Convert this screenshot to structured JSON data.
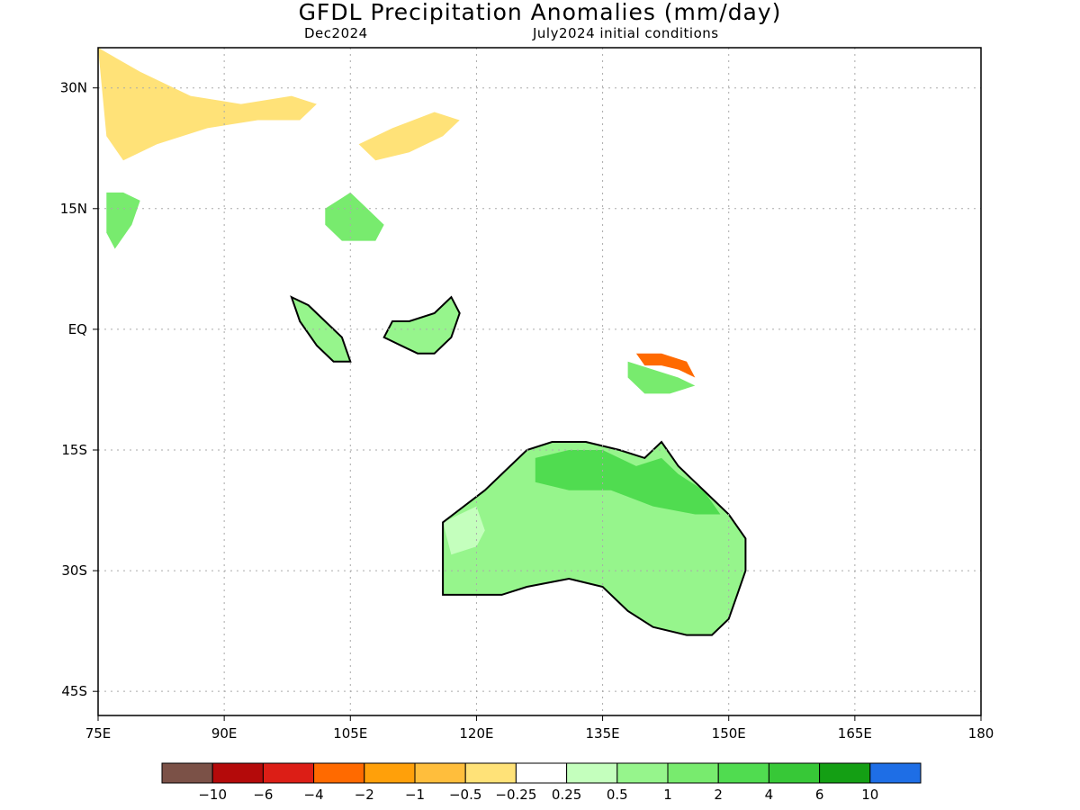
{
  "title": "GFDL Precipitation Anomalies (mm/day)",
  "subtitle_left": "Dec2024",
  "subtitle_right": "July2024 initial conditions",
  "lat_ticks": [
    "30N",
    "15N",
    "EQ",
    "15S",
    "30S",
    "45S"
  ],
  "lon_ticks": [
    "75E",
    "90E",
    "105E",
    "120E",
    "135E",
    "150E",
    "165E",
    "180"
  ],
  "colorbar": {
    "labels": [
      "−10",
      "−6",
      "−4",
      "−2",
      "−1",
      "−0.5",
      "−0.25",
      "0.25",
      "0.5",
      "1",
      "2",
      "4",
      "6",
      "10"
    ],
    "colors": [
      "#7b5147",
      "#b40a0a",
      "#dc1e16",
      "#ff6a00",
      "#ffa00a",
      "#ffbe3c",
      "#ffe278",
      "#ffffff",
      "#c4ffbd",
      "#96f58c",
      "#78eb6e",
      "#50dc50",
      "#37c837",
      "#149f14",
      "#1e6ee6"
    ]
  },
  "map_data": {
    "extent": {
      "lon_min": 75,
      "lon_max": 180,
      "lat_min": -48,
      "lat_max": 35
    },
    "grid": "dotted",
    "features": [
      {
        "region": "Australia",
        "anomaly_class": "0.5 to 1",
        "polygon": [
          [
            133,
            -14
          ],
          [
            137,
            -15
          ],
          [
            140,
            -16
          ],
          [
            142,
            -14
          ],
          [
            144,
            -17
          ],
          [
            146,
            -19
          ],
          [
            148,
            -21
          ],
          [
            150,
            -23
          ],
          [
            152,
            -26
          ],
          [
            152,
            -30
          ],
          [
            151,
            -33
          ],
          [
            150,
            -36
          ],
          [
            148,
            -38
          ],
          [
            145,
            -38
          ],
          [
            141,
            -37
          ],
          [
            138,
            -35
          ],
          [
            135,
            -32
          ],
          [
            131,
            -31
          ],
          [
            126,
            -32
          ],
          [
            123,
            -33
          ],
          [
            116,
            -33
          ],
          [
            116,
            -28
          ],
          [
            116,
            -24
          ],
          [
            121,
            -20
          ],
          [
            124,
            -17
          ],
          [
            126,
            -15
          ],
          [
            129,
            -14
          ]
        ]
      },
      {
        "region": "Northern Australia",
        "anomaly_class": "2 to 4",
        "polygon": [
          [
            127,
            -16
          ],
          [
            131,
            -15
          ],
          [
            135,
            -15
          ],
          [
            139,
            -17
          ],
          [
            142,
            -16
          ],
          [
            144,
            -18
          ],
          [
            147,
            -20
          ],
          [
            149,
            -23
          ],
          [
            146,
            -23
          ],
          [
            141,
            -22
          ],
          [
            136,
            -20
          ],
          [
            131,
            -20
          ],
          [
            127,
            -19
          ]
        ]
      },
      {
        "region": "Western Australia coast",
        "anomaly_class": "0.25 to 0.5",
        "polygon": [
          [
            116,
            -24
          ],
          [
            120,
            -22
          ],
          [
            121,
            -25
          ],
          [
            120,
            -27
          ],
          [
            117,
            -28
          ]
        ]
      },
      {
        "region": "Borneo",
        "anomaly_class": "0.5 to 1",
        "polygon": [
          [
            110,
            1
          ],
          [
            112,
            1
          ],
          [
            115,
            2
          ],
          [
            117,
            4
          ],
          [
            118,
            2
          ],
          [
            117,
            -1
          ],
          [
            115,
            -3
          ],
          [
            113,
            -3
          ],
          [
            111,
            -2
          ],
          [
            109,
            -1
          ]
        ]
      },
      {
        "region": "Sumatra",
        "anomaly_class": "0.5 to 1",
        "polygon": [
          [
            98,
            4
          ],
          [
            100,
            3
          ],
          [
            102,
            1
          ],
          [
            104,
            -1
          ],
          [
            105,
            -4
          ],
          [
            103,
            -4
          ],
          [
            101,
            -2
          ],
          [
            99,
            1
          ]
        ]
      },
      {
        "region": "Indochina",
        "anomaly_class": "1 to 2",
        "polygon": [
          [
            102,
            15
          ],
          [
            105,
            17
          ],
          [
            107,
            15
          ],
          [
            109,
            13
          ],
          [
            108,
            11
          ],
          [
            104,
            11
          ],
          [
            102,
            13
          ]
        ]
      },
      {
        "region": "Western India",
        "anomaly_class": "1 to 2",
        "polygon": [
          [
            76,
            17
          ],
          [
            78,
            17
          ],
          [
            80,
            16
          ],
          [
            79,
            13
          ],
          [
            77,
            10
          ],
          [
            76,
            12
          ]
        ]
      },
      {
        "region": "New Guinea highlands",
        "anomaly_class": "-1 to -2",
        "polygon": [
          [
            139,
            -3
          ],
          [
            142,
            -3
          ],
          [
            145,
            -4
          ],
          [
            146,
            -6
          ],
          [
            144,
            -5
          ],
          [
            142,
            -4.5
          ],
          [
            140,
            -4.5
          ]
        ]
      },
      {
        "region": "New Guinea south",
        "anomaly_class": "1 to 2",
        "polygon": [
          [
            138,
            -4
          ],
          [
            141,
            -5
          ],
          [
            144,
            -6
          ],
          [
            146,
            -7
          ],
          [
            143,
            -8
          ],
          [
            140,
            -8
          ],
          [
            138,
            -6
          ]
        ]
      },
      {
        "region": "Himalaya / Tibet",
        "anomaly_class": "-0.25 to -0.5",
        "polygon": [
          [
            75,
            35
          ],
          [
            80,
            32
          ],
          [
            86,
            29
          ],
          [
            92,
            28
          ],
          [
            98,
            29
          ],
          [
            101,
            28
          ],
          [
            99,
            26
          ],
          [
            94,
            26
          ],
          [
            88,
            25
          ],
          [
            82,
            23
          ],
          [
            78,
            21
          ],
          [
            76,
            24
          ]
        ]
      },
      {
        "region": "South China",
        "anomaly_class": "-0.25 to -0.5",
        "polygon": [
          [
            106,
            23
          ],
          [
            110,
            25
          ],
          [
            115,
            27
          ],
          [
            118,
            26
          ],
          [
            116,
            24
          ],
          [
            112,
            22
          ],
          [
            108,
            21
          ]
        ]
      }
    ]
  }
}
